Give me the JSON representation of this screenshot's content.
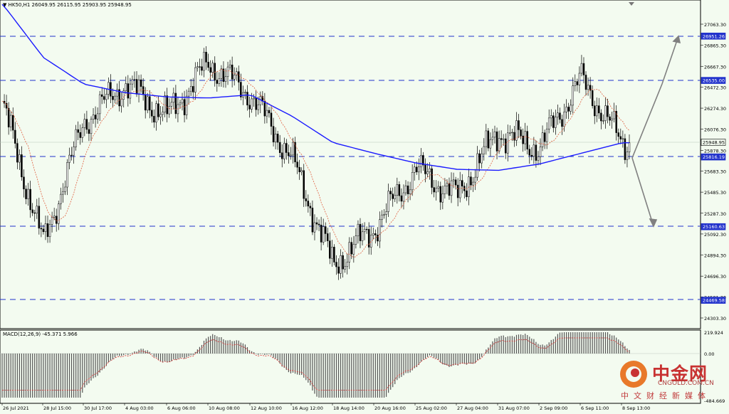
{
  "header": {
    "text": "HK50,H1  26049.95 26115.95 25903.95 25948.95"
  },
  "macd_label": "MACD(12,26,9) -45.371 5.966",
  "price_axis": [
    "27063.30",
    "26865.30",
    "26667.30",
    "26472.30",
    "26274.30",
    "26076.30",
    "25878.30",
    "25683.30",
    "25485.30",
    "25287.30",
    "25092.30",
    "24894.30",
    "24696.30",
    "24501.30",
    "24303.30"
  ],
  "macd_axis": [
    "219.924",
    "0.00",
    "-484.669"
  ],
  "level_labels": [
    "26951.26",
    "26535.00",
    "25948.95",
    "25816.19",
    "25160.63",
    "24469.58"
  ],
  "time_axis": [
    "26 Jul 2021",
    "28 Jul 15:00",
    "30 Jul 17:00",
    "4 Aug 03:00",
    "6 Aug 06:00",
    "10 Aug 08:00",
    "12 Aug 10:00",
    "16 Aug 12:00",
    "18 Aug 14:00",
    "20 Aug 16:00",
    "25 Aug 02:00",
    "27 Aug 04:00",
    "31 Aug 07:00",
    "2 Sep 09:00",
    "6 Sep 11:00",
    "8 Sep 13:00"
  ],
  "logo": {
    "cn": "中金网",
    "url": "CNGOLD.COM.CN",
    "sub": "中文财经新媒体"
  },
  "colors": {
    "background": "#f3fbf0",
    "grid": "#000000",
    "levels": "#2233cc",
    "ma_slow": "#1a1aff",
    "ma_fast": "#e06040",
    "candles": "#000000",
    "arrows": "#808080",
    "logo": "#c83232"
  },
  "chart_data": {
    "type": "line",
    "title": "",
    "xlabel": "",
    "ylabel": "",
    "ylim": [
      24303.3,
      27250
    ],
    "x": [
      "26 Jul 2021",
      "28 Jul 15:00",
      "30 Jul 17:00",
      "4 Aug 03:00",
      "6 Aug 06:00",
      "10 Aug 08:00",
      "12 Aug 10:00",
      "16 Aug 12:00",
      "18 Aug 14:00",
      "20 Aug 16:00",
      "25 Aug 02:00",
      "27 Aug 04:00",
      "31 Aug 07:00",
      "2 Sep 09:00",
      "6 Sep 11:00",
      "8 Sep 13:00"
    ],
    "series": [
      {
        "name": "",
        "values": [
          26300,
          25000,
          26150,
          26500,
          26200,
          26700,
          26400,
          25800,
          24800,
          25150,
          25700,
          25450,
          26050,
          25900,
          26550,
          25949
        ]
      },
      {
        "name": "",
        "values": [
          27250,
          26750,
          26500,
          26420,
          26380,
          26370,
          26400,
          26200,
          25950,
          25850,
          25760,
          25700,
          25690,
          25750,
          25850,
          25949
        ]
      }
    ],
    "levels": [
      26951.26,
      26535.0,
      25816.19,
      25160.63,
      24469.58
    ],
    "current_price": 25948.95
  }
}
